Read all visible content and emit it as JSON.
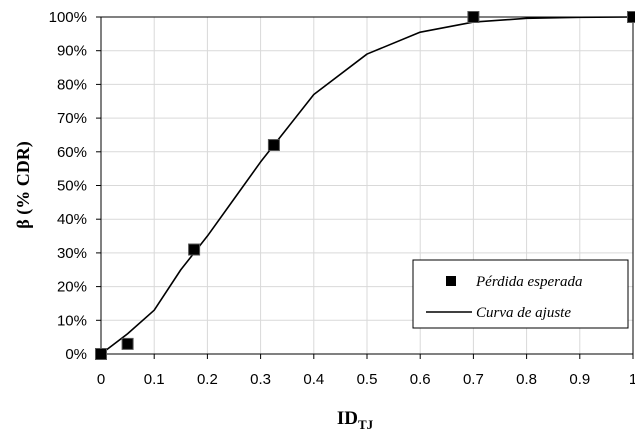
{
  "chart_data": {
    "type": "scatter",
    "xlabel_main": "ID",
    "xlabel_sub": "TJ",
    "ylabel": "β (% CDR)",
    "xlim": [
      0,
      1
    ],
    "ylim": [
      0,
      100
    ],
    "x_ticks": [
      "0",
      "0.1",
      "0.2",
      "0.3",
      "0.4",
      "0.5",
      "0.6",
      "0.7",
      "0.8",
      "0.9",
      "1"
    ],
    "y_ticks": [
      "0%",
      "10%",
      "20%",
      "30%",
      "40%",
      "50%",
      "60%",
      "70%",
      "80%",
      "90%",
      "100%"
    ],
    "grid": true,
    "legend_position": "bottom-right",
    "series": [
      {
        "name": "Pérdida esperada",
        "kind": "markers",
        "marker": "square",
        "color": "#000000",
        "x": [
          0,
          0.05,
          0.175,
          0.325,
          0.7,
          1.0
        ],
        "y": [
          0,
          3,
          31,
          62,
          100,
          100
        ]
      },
      {
        "name": "Curva de ajuste",
        "kind": "line",
        "color": "#000000",
        "x": [
          0,
          0.05,
          0.1,
          0.15,
          0.2,
          0.25,
          0.3,
          0.35,
          0.4,
          0.5,
          0.6,
          0.7,
          0.8,
          0.9,
          1.0
        ],
        "y": [
          0,
          6,
          13,
          25,
          35,
          46,
          57,
          67,
          77,
          89,
          95.5,
          98.5,
          99.6,
          99.9,
          100
        ]
      }
    ]
  }
}
